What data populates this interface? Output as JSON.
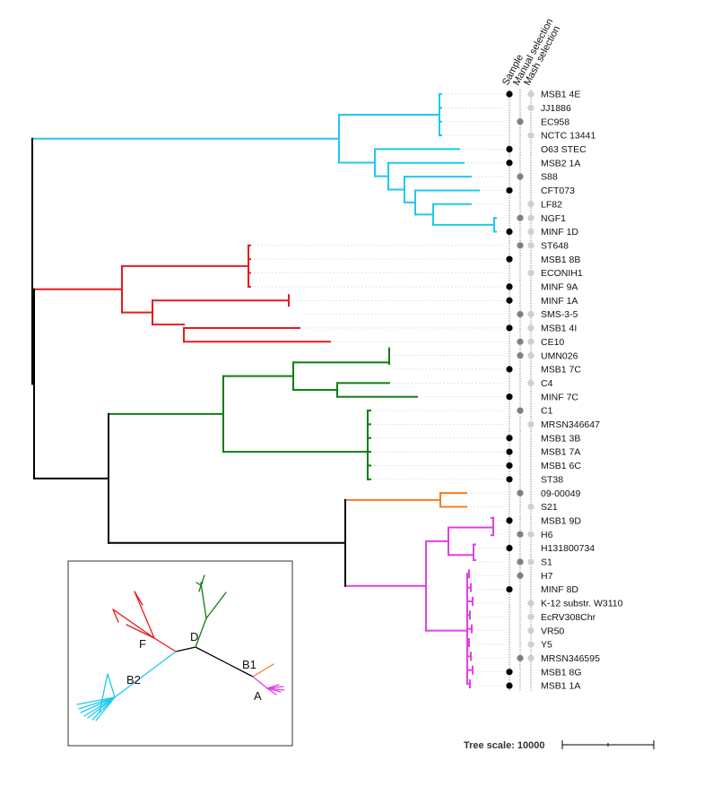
{
  "columns": [
    "Sample",
    "Manual selection",
    "Mash selection"
  ],
  "colors": {
    "B2": "#1ec8f0",
    "F": "#e8191c",
    "D": "#127c12",
    "B1": "#f47c20",
    "A": "#e040e6",
    "root": "#000000",
    "sample_dot": "#000000",
    "manual_dot": "#808080",
    "mash_dot": "#cfcfcf"
  },
  "leaves": [
    {
      "name": "MSB1 4E",
      "sample": true,
      "manual": false,
      "mash": true
    },
    {
      "name": "JJ1886",
      "sample": false,
      "manual": false,
      "mash": true
    },
    {
      "name": "EC958",
      "sample": false,
      "manual": true,
      "mash": false
    },
    {
      "name": "NCTC 13441",
      "sample": false,
      "manual": false,
      "mash": true
    },
    {
      "name": "O63 STEC",
      "sample": true,
      "manual": false,
      "mash": false
    },
    {
      "name": "MSB2 1A",
      "sample": true,
      "manual": false,
      "mash": false
    },
    {
      "name": "S88",
      "sample": false,
      "manual": true,
      "mash": false
    },
    {
      "name": "CFT073",
      "sample": true,
      "manual": false,
      "mash": false
    },
    {
      "name": "LF82",
      "sample": false,
      "manual": false,
      "mash": true
    },
    {
      "name": "NGF1",
      "sample": false,
      "manual": true,
      "mash": true
    },
    {
      "name": "MINF 1D",
      "sample": true,
      "manual": false,
      "mash": true
    },
    {
      "name": "ST648",
      "sample": false,
      "manual": true,
      "mash": true
    },
    {
      "name": "MSB1 8B",
      "sample": true,
      "manual": false,
      "mash": false
    },
    {
      "name": "ECONIH1",
      "sample": false,
      "manual": false,
      "mash": true
    },
    {
      "name": "MINF 9A",
      "sample": true,
      "manual": false,
      "mash": false
    },
    {
      "name": "MINF 1A",
      "sample": true,
      "manual": false,
      "mash": false
    },
    {
      "name": "SMS-3-5",
      "sample": false,
      "manual": true,
      "mash": true
    },
    {
      "name": "MSB1 4I",
      "sample": true,
      "manual": false,
      "mash": true
    },
    {
      "name": "CE10",
      "sample": false,
      "manual": true,
      "mash": true
    },
    {
      "name": "UMN026",
      "sample": false,
      "manual": true,
      "mash": true
    },
    {
      "name": "MSB1 7C",
      "sample": true,
      "manual": false,
      "mash": false
    },
    {
      "name": "C4",
      "sample": false,
      "manual": false,
      "mash": true
    },
    {
      "name": "MINF 7C",
      "sample": true,
      "manual": false,
      "mash": false
    },
    {
      "name": "C1",
      "sample": false,
      "manual": true,
      "mash": false
    },
    {
      "name": "MRSN346647",
      "sample": false,
      "manual": false,
      "mash": true
    },
    {
      "name": "MSB1 3B",
      "sample": true,
      "manual": false,
      "mash": false
    },
    {
      "name": "MSB1 7A",
      "sample": true,
      "manual": false,
      "mash": false
    },
    {
      "name": "MSB1 6C",
      "sample": true,
      "manual": false,
      "mash": false
    },
    {
      "name": "ST38",
      "sample": true,
      "manual": false,
      "mash": false
    },
    {
      "name": "09-00049",
      "sample": false,
      "manual": true,
      "mash": false
    },
    {
      "name": "S21",
      "sample": false,
      "manual": false,
      "mash": true
    },
    {
      "name": "MSB1 9D",
      "sample": true,
      "manual": false,
      "mash": false
    },
    {
      "name": "H6",
      "sample": false,
      "manual": true,
      "mash": true
    },
    {
      "name": "H131800734",
      "sample": true,
      "manual": false,
      "mash": false
    },
    {
      "name": "S1",
      "sample": false,
      "manual": true,
      "mash": true
    },
    {
      "name": "H7",
      "sample": false,
      "manual": true,
      "mash": false
    },
    {
      "name": "MINF 8D",
      "sample": true,
      "manual": false,
      "mash": false
    },
    {
      "name": "K-12 substr. W3110",
      "sample": false,
      "manual": false,
      "mash": true
    },
    {
      "name": "EcRV308Chr",
      "sample": false,
      "manual": false,
      "mash": true
    },
    {
      "name": "VR50",
      "sample": false,
      "manual": false,
      "mash": true
    },
    {
      "name": "Y5",
      "sample": false,
      "manual": false,
      "mash": true
    },
    {
      "name": "MRSN346595",
      "sample": false,
      "manual": true,
      "mash": true
    },
    {
      "name": "MSB1 8G",
      "sample": true,
      "manual": false,
      "mash": false
    },
    {
      "name": "MSB1 1A",
      "sample": true,
      "manual": false,
      "mash": false
    }
  ],
  "inset_labels": [
    "B2",
    "F",
    "D",
    "B1",
    "A"
  ],
  "scale": {
    "label": "Tree scale: 10000"
  }
}
